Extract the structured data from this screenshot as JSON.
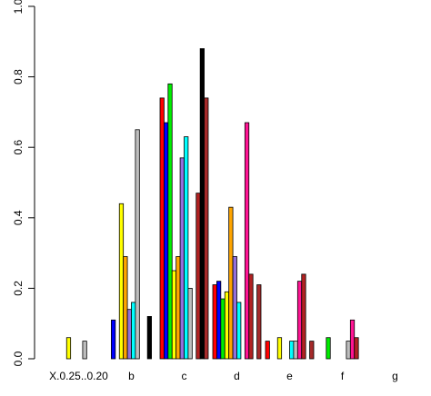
{
  "chart_data": {
    "type": "bar",
    "categories": [
      "X.0.25..0.20",
      "b",
      "c",
      "d",
      "e",
      "f",
      "g"
    ],
    "series": [
      {
        "color": "#ff0000",
        "values": [
          0,
          0,
          0.74,
          0.21,
          0.05,
          0,
          0
        ]
      },
      {
        "color": "#0000ff",
        "values": [
          0,
          0.11,
          0.67,
          0.22,
          0,
          0,
          0
        ]
      },
      {
        "color": "#00ee00",
        "values": [
          0,
          0,
          0.78,
          0.17,
          0,
          0.06,
          0
        ]
      },
      {
        "color": "#ffff00",
        "values": [
          0.06,
          0.44,
          0.25,
          0.19,
          0.06,
          0,
          0
        ]
      },
      {
        "color": "#ffa500",
        "values": [
          0,
          0.29,
          0.29,
          0.43,
          0,
          0,
          0
        ]
      },
      {
        "color": "#9370db",
        "values": [
          0,
          0.14,
          0.57,
          0.29,
          0,
          0,
          0
        ]
      },
      {
        "color": "#00ffff",
        "values": [
          0,
          0.16,
          0.63,
          0.16,
          0.05,
          0,
          0
        ]
      },
      {
        "color": "#bebebe",
        "values": [
          0.05,
          0.65,
          0.2,
          0,
          0.05,
          0.05,
          0
        ]
      },
      {
        "color": "#ff1493",
        "values": [
          0,
          0,
          0,
          0.67,
          0.22,
          0.11,
          0
        ]
      },
      {
        "color": "#b22222",
        "values": [
          0,
          0,
          0.47,
          0.24,
          0.24,
          0.06,
          0
        ]
      },
      {
        "color": "#000000",
        "values": [
          0,
          0.12,
          0.88,
          0,
          0,
          0,
          0
        ]
      },
      {
        "color": "#a52a2a",
        "values": [
          0,
          0,
          0.74,
          0.21,
          0.05,
          0,
          0
        ]
      }
    ],
    "ylim": [
      0,
      1
    ],
    "yticks": [
      {
        "value": 0,
        "label": "0.0"
      },
      {
        "value": 0.2,
        "label": "0.2"
      },
      {
        "value": 0.4,
        "label": "0.4"
      },
      {
        "value": 0.6,
        "label": "0.6"
      },
      {
        "value": 0.8,
        "label": "0.8"
      },
      {
        "value": 1,
        "label": "1.0"
      }
    ]
  }
}
